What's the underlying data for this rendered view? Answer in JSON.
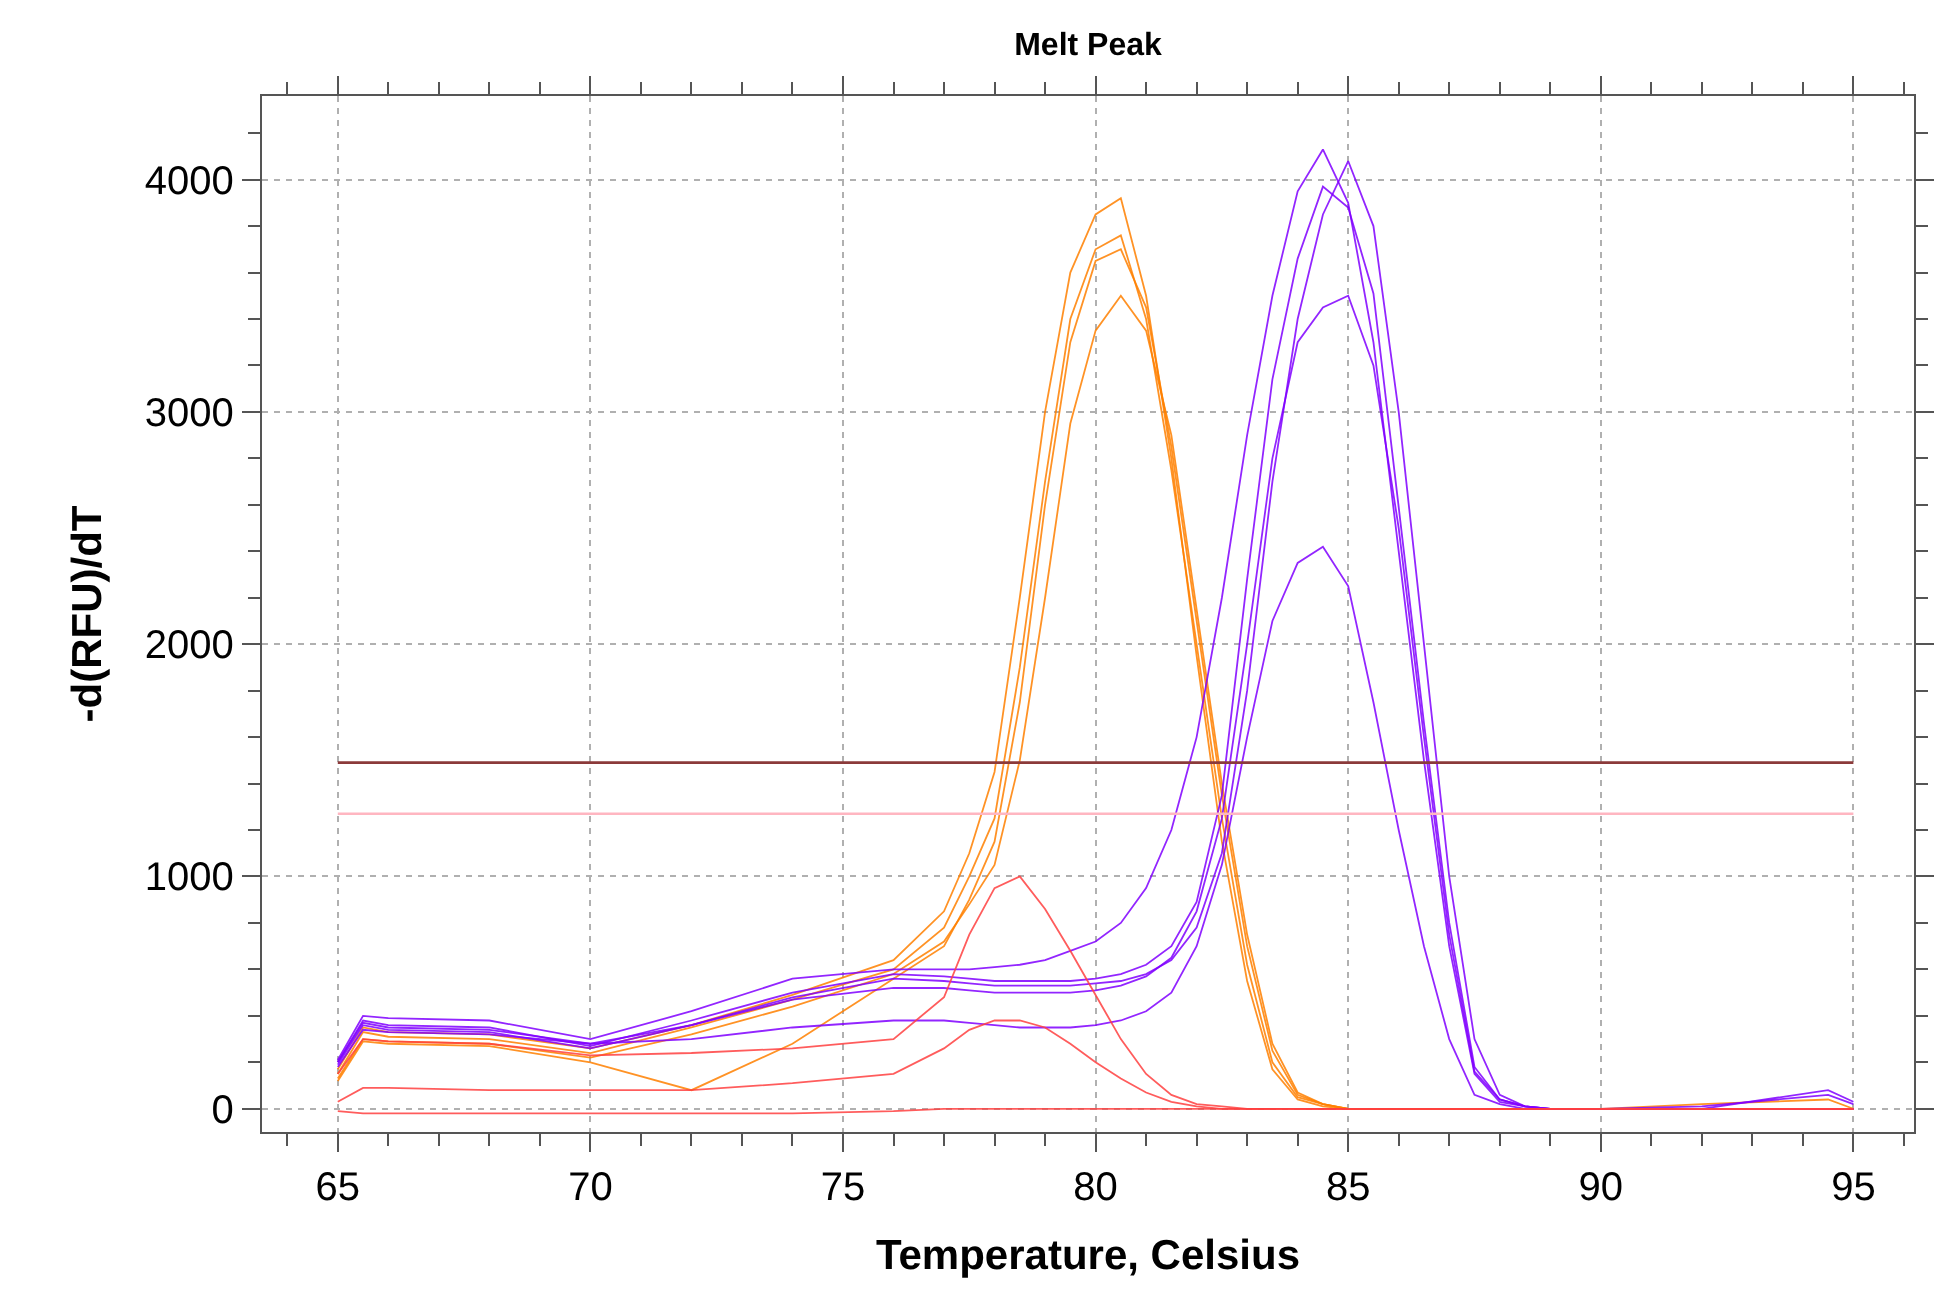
{
  "chart_data": {
    "type": "line",
    "title": "Melt Peak",
    "xlabel": "Temperature, Celsius",
    "ylabel": "-d(RFU)/dT",
    "x": [
      65,
      65.5,
      66,
      68,
      70,
      72,
      74,
      76,
      77,
      77.5,
      78,
      78.5,
      79,
      79.5,
      80,
      80.5,
      81,
      81.5,
      82,
      82.5,
      83,
      83.5,
      84,
      84.5,
      85,
      85.5,
      86,
      86.5,
      87,
      87.5,
      88,
      88.5,
      89,
      90,
      92,
      94.5,
      95
    ],
    "series": [
      {
        "color": "#ff8000",
        "values": [
          150,
          330,
          310,
          300,
          240,
          350,
          470,
          600,
          780,
          1000,
          1250,
          1900,
          2700,
          3400,
          3700,
          3760,
          3400,
          2750,
          2000,
          1250,
          620,
          200,
          50,
          20,
          0,
          0,
          0,
          0,
          0,
          0,
          0,
          0,
          0,
          0,
          0,
          0,
          0
        ]
      },
      {
        "color": "#ff8000",
        "values": [
          130,
          300,
          290,
          280,
          220,
          320,
          440,
          580,
          720,
          880,
          1050,
          1500,
          2200,
          2950,
          3350,
          3500,
          3350,
          2900,
          2150,
          1400,
          750,
          280,
          70,
          20,
          0,
          0,
          0,
          0,
          0,
          0,
          0,
          0,
          0,
          0,
          0,
          0,
          0
        ]
      },
      {
        "color": "#ff8000",
        "values": [
          170,
          350,
          330,
          320,
          260,
          360,
          490,
          640,
          850,
          1100,
          1450,
          2200,
          3000,
          3600,
          3850,
          3920,
          3500,
          2800,
          1950,
          1150,
          550,
          170,
          40,
          10,
          0,
          0,
          0,
          0,
          0,
          0,
          0,
          0,
          0,
          0,
          20,
          40,
          0
        ]
      },
      {
        "color": "#ff8000",
        "values": [
          120,
          290,
          280,
          270,
          200,
          80,
          280,
          560,
          700,
          900,
          1150,
          1750,
          2600,
          3300,
          3650,
          3700,
          3450,
          2850,
          2100,
          1350,
          700,
          250,
          60,
          20,
          0,
          0,
          0,
          0,
          0,
          0,
          0,
          0,
          0,
          0,
          0,
          0,
          0
        ]
      },
      {
        "color": "#8000ff",
        "values": [
          210,
          400,
          390,
          380,
          300,
          420,
          560,
          600,
          600,
          600,
          610,
          620,
          640,
          680,
          720,
          800,
          950,
          1200,
          1600,
          2200,
          2900,
          3500,
          3950,
          4130,
          3900,
          3300,
          2400,
          1500,
          700,
          150,
          30,
          10,
          0,
          0,
          0,
          0,
          0
        ]
      },
      {
        "color": "#8000ff",
        "values": [
          200,
          380,
          360,
          350,
          270,
          380,
          500,
          580,
          570,
          560,
          550,
          550,
          550,
          550,
          560,
          580,
          620,
          700,
          890,
          1350,
          2280,
          3140,
          3660,
          3970,
          3880,
          3510,
          2590,
          1660,
          800,
          180,
          40,
          10,
          0,
          0,
          0,
          0,
          0
        ]
      },
      {
        "color": "#8000ff",
        "values": [
          190,
          360,
          340,
          330,
          260,
          360,
          480,
          560,
          550,
          540,
          530,
          530,
          530,
          530,
          540,
          550,
          580,
          640,
          780,
          1100,
          1800,
          2700,
          3400,
          3850,
          4080,
          3800,
          3000,
          2000,
          1000,
          300,
          60,
          10,
          0,
          0,
          10,
          60,
          20
        ]
      },
      {
        "color": "#8000ff",
        "values": [
          180,
          340,
          330,
          320,
          280,
          300,
          350,
          380,
          380,
          370,
          360,
          350,
          350,
          350,
          360,
          380,
          420,
          500,
          700,
          1050,
          1600,
          2100,
          2350,
          2420,
          2250,
          1750,
          1200,
          700,
          300,
          60,
          20,
          0,
          0,
          0,
          0,
          0,
          0
        ]
      },
      {
        "color": "#8000ff",
        "values": [
          200,
          370,
          350,
          340,
          280,
          360,
          470,
          520,
          520,
          510,
          500,
          500,
          500,
          500,
          510,
          530,
          570,
          650,
          850,
          1250,
          2000,
          2800,
          3300,
          3450,
          3500,
          3200,
          2500,
          1600,
          750,
          160,
          40,
          10,
          0,
          0,
          0,
          80,
          30
        ]
      },
      {
        "color": "#ff4040",
        "values": [
          150,
          300,
          290,
          280,
          230,
          240,
          260,
          300,
          480,
          750,
          950,
          1000,
          860,
          680,
          490,
          300,
          150,
          60,
          20,
          10,
          0,
          0,
          0,
          0,
          0,
          0,
          0,
          0,
          0,
          0,
          0,
          0,
          0,
          0,
          0,
          0,
          0
        ]
      },
      {
        "color": "#ff4040",
        "values": [
          30,
          90,
          90,
          80,
          80,
          80,
          110,
          150,
          260,
          340,
          380,
          380,
          350,
          280,
          200,
          130,
          70,
          30,
          10,
          0,
          0,
          0,
          0,
          0,
          0,
          0,
          0,
          0,
          0,
          0,
          0,
          0,
          0,
          0,
          0,
          0,
          0
        ]
      },
      {
        "color": "#ff4040",
        "values": [
          -10,
          -20,
          -20,
          -20,
          -20,
          -20,
          -20,
          -10,
          0,
          0,
          0,
          0,
          0,
          0,
          0,
          0,
          0,
          0,
          0,
          0,
          0,
          0,
          0,
          0,
          0,
          0,
          0,
          0,
          0,
          0,
          0,
          0,
          0,
          0,
          0,
          0,
          0
        ]
      }
    ],
    "ref_lines": [
      {
        "axis": "y",
        "value": 1490,
        "color": "#8b3a3a"
      },
      {
        "axis": "y",
        "value": 1270,
        "color": "#ffb6c1"
      }
    ],
    "xlim": [
      63.5,
      96.2
    ],
    "ylim": [
      -100,
      4360
    ],
    "xticks": [
      {
        "value": 64,
        "label": null
      },
      65,
      {
        "value": 66,
        "label": null
      },
      {
        "value": 67,
        "label": null
      },
      {
        "value": 68,
        "label": null
      },
      {
        "value": 69,
        "label": null
      },
      70,
      {
        "value": 71,
        "label": null
      },
      {
        "value": 72,
        "label": null
      },
      {
        "value": 73,
        "label": null
      },
      {
        "value": 74,
        "label": null
      },
      75,
      {
        "value": 76,
        "label": null
      },
      {
        "value": 77,
        "label": null
      },
      {
        "value": 78,
        "label": null
      },
      {
        "value": 79,
        "label": null
      },
      80,
      {
        "value": 81,
        "label": null
      },
      {
        "value": 82,
        "label": null
      },
      {
        "value": 83,
        "label": null
      },
      {
        "value": 84,
        "label": null
      },
      85,
      {
        "value": 86,
        "label": null
      },
      {
        "value": 87,
        "label": null
      },
      {
        "value": 88,
        "label": null
      },
      {
        "value": 89,
        "label": null
      },
      90,
      {
        "value": 91,
        "label": null
      },
      {
        "value": 92,
        "label": null
      },
      {
        "value": 93,
        "label": null
      },
      {
        "value": 94,
        "label": null
      },
      95,
      {
        "value": 96,
        "label": null
      }
    ],
    "yticks": [
      0,
      {
        "value": 200,
        "label": null
      },
      {
        "value": 400,
        "label": null
      },
      {
        "value": 600,
        "label": null
      },
      {
        "value": 800,
        "label": null
      },
      1000,
      {
        "value": 1200,
        "label": null
      },
      {
        "value": 1400,
        "label": null
      },
      {
        "value": 1600,
        "label": null
      },
      {
        "value": 1800,
        "label": null
      },
      2000,
      {
        "value": 2200,
        "label": null
      },
      {
        "value": 2400,
        "label": null
      },
      {
        "value": 2600,
        "label": null
      },
      {
        "value": 2800,
        "label": null
      },
      3000,
      {
        "value": 3200,
        "label": null
      },
      {
        "value": 3400,
        "label": null
      },
      {
        "value": 3600,
        "label": null
      },
      {
        "value": 3800,
        "label": null
      },
      4000,
      {
        "value": 4200,
        "label": null
      }
    ],
    "grid": true,
    "marker": "none",
    "line_style": "solid"
  }
}
